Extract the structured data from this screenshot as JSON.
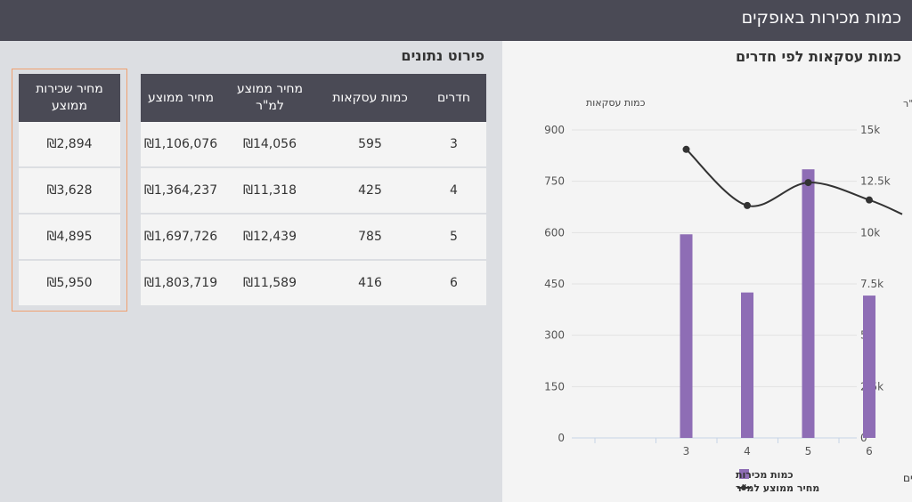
{
  "header": {
    "title": "כמות מכירות באופקים"
  },
  "chart_panel": {
    "title": "כמות עסקאות לפי חדרים"
  },
  "details": {
    "title": "פירוט נתונים"
  },
  "table": {
    "headers": {
      "rooms": "חדרים",
      "deals": "כמות עסקאות",
      "price_sqm": "מחיר ממוצע למ\"ר",
      "avg_price": "מחיר ממוצע"
    },
    "rows": [
      {
        "rooms": "3",
        "deals": "595",
        "price_sqm": "₪14,056",
        "avg_price": "₪1,106,076"
      },
      {
        "rooms": "4",
        "deals": "425",
        "price_sqm": "₪11,318",
        "avg_price": "₪1,364,237"
      },
      {
        "rooms": "5",
        "deals": "785",
        "price_sqm": "₪12,439",
        "avg_price": "₪1,697,726"
      },
      {
        "rooms": "6",
        "deals": "416",
        "price_sqm": "₪11,589",
        "avg_price": "₪1,803,719"
      }
    ]
  },
  "rent_table": {
    "header": "מחיר שכירות ממוצע",
    "rows": [
      "₪2,894",
      "₪3,628",
      "₪4,895",
      "₪5,950"
    ]
  },
  "colors": {
    "header_bg": "#4a4a55",
    "bar": "#8e6db5",
    "line": "#333333",
    "rent_border": "#f0a070"
  },
  "chart_data": {
    "type": "bar",
    "categories": [
      "3",
      "4",
      "5",
      "6"
    ],
    "series": [
      {
        "name": "כמות מכירות",
        "type": "bar",
        "axis": "left",
        "values": [
          595,
          425,
          785,
          416
        ]
      },
      {
        "name": "מחיר ממוצע למ\"ר",
        "type": "line",
        "axis": "right",
        "values": [
          14056,
          11318,
          12439,
          11589
        ]
      }
    ],
    "xlabel": "חדרים",
    "ylabel_left": "כמות עסקאות",
    "ylabel_right": "מחיר ממוצע למ\"ר",
    "ylim_left": [
      0,
      900
    ],
    "ylim_right": [
      0,
      15000
    ],
    "yticks_left": [
      "0",
      "150",
      "300",
      "450",
      "600",
      "750",
      "900"
    ],
    "yticks_right": [
      "0",
      "2.5k",
      "5k",
      "7.5k",
      "10k",
      "12.5k",
      "15k"
    ],
    "legend_position": "bottom",
    "grid": true
  }
}
